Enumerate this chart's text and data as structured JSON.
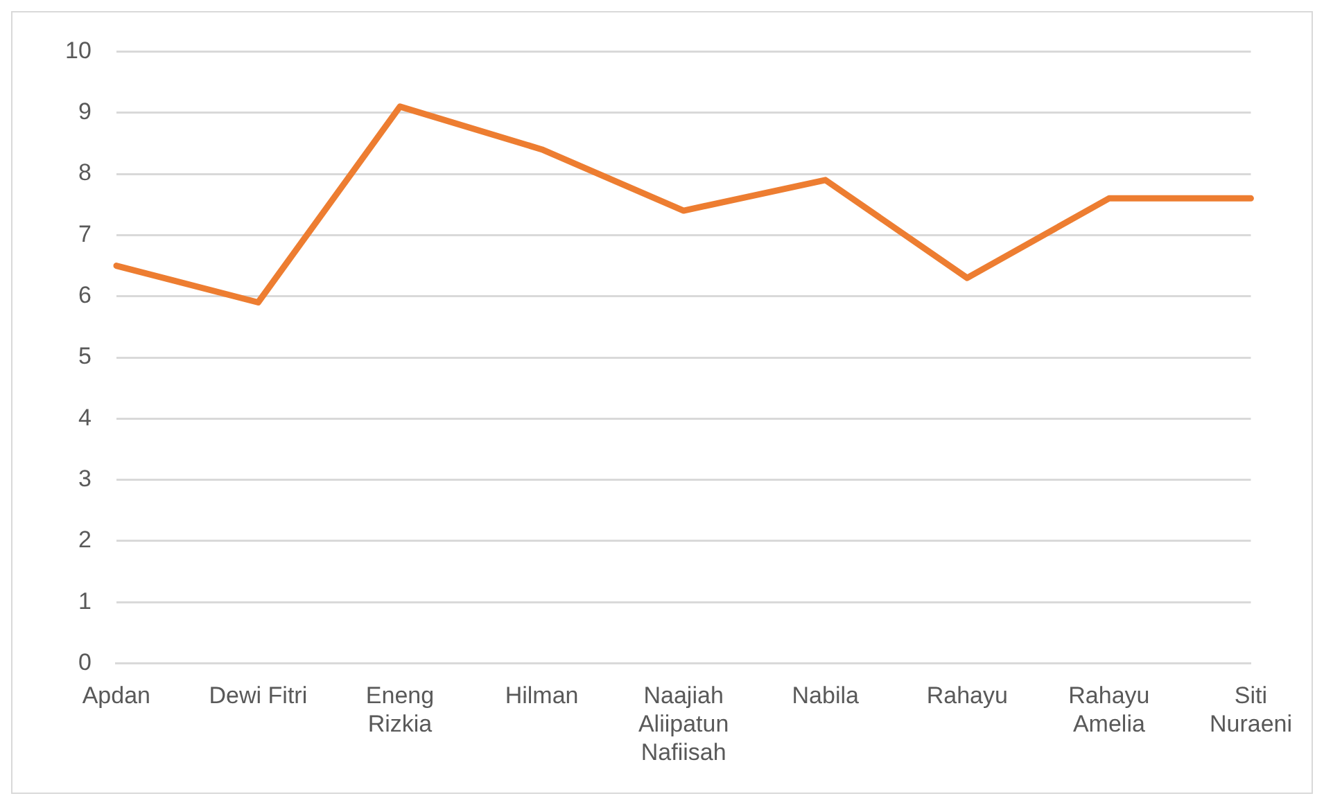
{
  "chart_data": {
    "type": "line",
    "categories": [
      "Apdan",
      "Dewi Fitri",
      "Eneng Rizkia",
      "Hilman",
      "Naajiah Aliipatun Nafiisah",
      "Nabila",
      "Rahayu",
      "Rahayu Amelia",
      "Siti Nuraeni"
    ],
    "series": [
      {
        "color": "#ed7d31",
        "values": [
          6.5,
          5.9,
          9.1,
          8.4,
          7.4,
          7.9,
          6.3,
          7.6,
          7.6
        ]
      }
    ],
    "ylim": [
      0,
      10
    ],
    "yticks": [
      0,
      1,
      2,
      3,
      4,
      5,
      6,
      7,
      8,
      9,
      10
    ],
    "grid": "y",
    "legend": false,
    "marker": "none",
    "line_style": "solid"
  }
}
